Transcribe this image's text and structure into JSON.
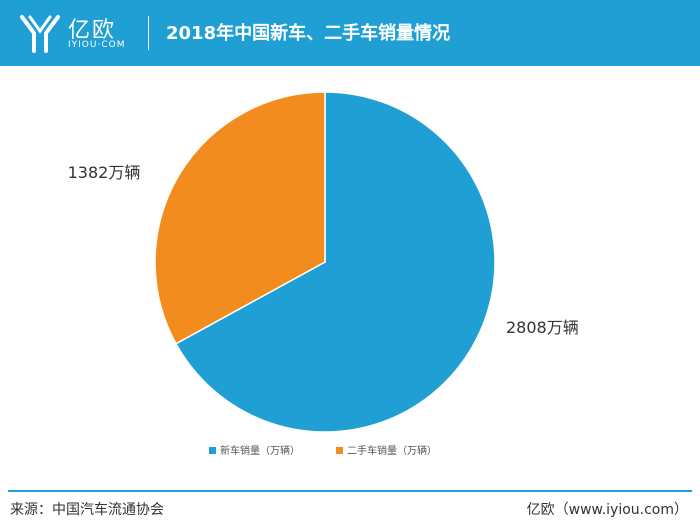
{
  "header": {
    "logo_cn": "亿欧",
    "logo_en": "IYIOU·COM",
    "title": "2018年中国新车、二手车销量情况"
  },
  "colors": {
    "brand": "#1f9fd4",
    "new_car": "#1f9fd4",
    "used_car": "#f28c1f"
  },
  "chart_data": {
    "type": "pie",
    "title": "2018年中国新车、二手车销量情况",
    "legend_position": "bottom",
    "series": [
      {
        "name": "新车销量（万辆）",
        "value": 2808,
        "label": "2808万辆",
        "color": "#1f9fd4"
      },
      {
        "name": "二手车销量（万辆）",
        "value": 1382,
        "label": "1382万辆",
        "color": "#f28c1f"
      }
    ]
  },
  "footer": {
    "source": "来源：中国汽车流通协会",
    "brand": "亿欧（www.iyiou.com）"
  }
}
